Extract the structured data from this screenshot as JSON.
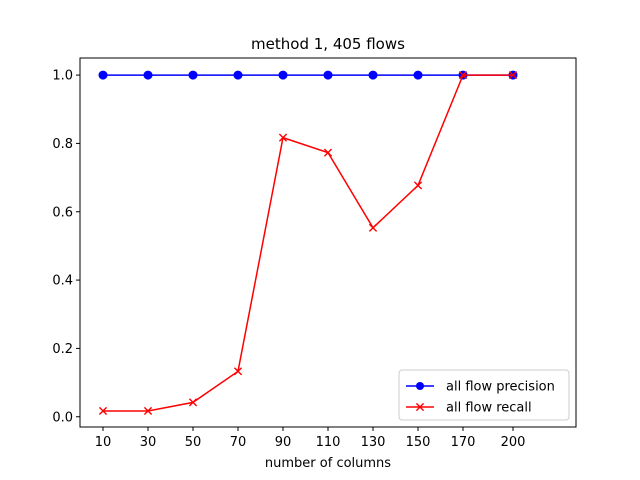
{
  "chart_data": {
    "type": "line",
    "title": "method 1, 405 flows",
    "xlabel": "number of columns",
    "ylabel": "",
    "categories": [
      "10",
      "30",
      "50",
      "70",
      "90",
      "110",
      "130",
      "150",
      "170",
      "200"
    ],
    "yticks": [
      "0.0",
      "0.2",
      "0.4",
      "0.6",
      "0.8",
      "1.0"
    ],
    "ylim": [
      -0.03,
      1.05
    ],
    "grid": false,
    "legend_position": "lower-right",
    "series": [
      {
        "name": "all flow precision",
        "color": "#0000ff",
        "marker": "circle",
        "values": [
          1.0,
          1.0,
          1.0,
          1.0,
          1.0,
          1.0,
          1.0,
          1.0,
          1.0,
          1.0
        ]
      },
      {
        "name": "all flow recall",
        "color": "#ff0000",
        "marker": "x",
        "values": [
          0.017,
          0.017,
          0.042,
          0.133,
          0.817,
          0.773,
          0.553,
          0.677,
          1.0,
          1.0
        ]
      }
    ]
  }
}
